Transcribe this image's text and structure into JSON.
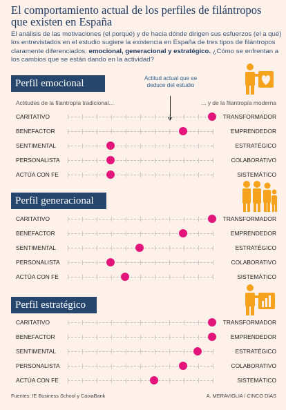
{
  "title": "El comportamiento actual de los perfiles de filántropos que existen en España",
  "intro": {
    "part1": "El análisis de las motivaciones (el porqué) y de hacia dónde dirigen sus esfuerzos (el a qué) los entrevistados en el estudio sugiere la existencia en España de tres tipos de filántropos claramente diferenciados: ",
    "bold": "emocional, generacional y estratégico.",
    "part2": " ¿Cómo se enfrentan a los cambios que se están dando en la actividad?"
  },
  "annotation": "Actitud actual que se deduce del estudio",
  "subheaders": {
    "left": "Actitudes de la filantropía tradicional...",
    "right": "... y de la filantropía moderna"
  },
  "colors": {
    "dot": "#e4157a",
    "header_bg": "#26466e",
    "icon": "#f7a21c",
    "background": "#fdf1ea"
  },
  "chart_data": {
    "type": "scatter",
    "scale": [
      0,
      10
    ],
    "panels": [
      {
        "title": "Perfil emocional",
        "icon": "person-holding-heart-icon",
        "rows": [
          {
            "left": "CARITATIVO",
            "right": "TRANSFORMADOR",
            "value": 9
          },
          {
            "left": "BENEFACTOR",
            "right": "EMPRENDEDOR",
            "value": 7
          },
          {
            "left": "SENTIMENTAL",
            "right": "ESTRATÉGICO",
            "value": 2
          },
          {
            "left": "PERSONALISTA",
            "right": "COLABORATIVO",
            "value": 2
          },
          {
            "left": "ACTÚA CON FE",
            "right": "SISTEMÁTICO",
            "value": 2
          }
        ]
      },
      {
        "title": "Perfil generacional",
        "icon": "family-group-icon",
        "rows": [
          {
            "left": "CARITATIVO",
            "right": "TRANSFORMADOR",
            "value": 9
          },
          {
            "left": "BENEFACTOR",
            "right": "EMPRENDEDOR",
            "value": 7
          },
          {
            "left": "SENTIMENTAL",
            "right": "ESTRATÉGICO",
            "value": 4
          },
          {
            "left": "PERSONALISTA",
            "right": "COLABORATIVO",
            "value": 2
          },
          {
            "left": "ACTÚA CON FE",
            "right": "SISTEMÁTICO",
            "value": 3
          }
        ]
      },
      {
        "title": "Perfil estratégico",
        "icon": "person-with-chart-icon",
        "rows": [
          {
            "left": "CARITATIVO",
            "right": "TRANSFORMADOR",
            "value": 9
          },
          {
            "left": "BENEFACTOR",
            "right": "EMPRENDEDOR",
            "value": 9
          },
          {
            "left": "SENTIMENTAL",
            "right": "ESTRATÉGICO",
            "value": 8
          },
          {
            "left": "PERSONALISTA",
            "right": "COLABORATIVO",
            "value": 7
          },
          {
            "left": "ACTÚA CON FE",
            "right": "SISTEMÁTICO",
            "value": 5
          }
        ]
      }
    ]
  },
  "footer": {
    "source": "Fuentes: IE Business School y CaixaBank",
    "credit": "A. MERAVIGLIA / CINCO DÍAS"
  }
}
